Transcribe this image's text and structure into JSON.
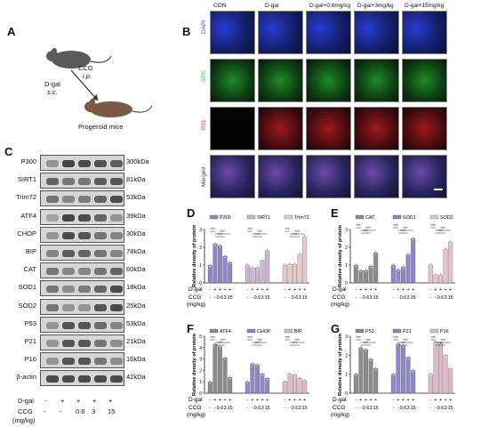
{
  "panel_labels": {
    "a": "A",
    "b": "B",
    "c": "C",
    "d": "D",
    "e": "E",
    "f": "F",
    "g": "G"
  },
  "panel_a": {
    "drug": "CCG",
    "drug_route": "i.p.",
    "inducer": "D-gal",
    "inducer_route": "s.c.",
    "result": "Progeroid mice"
  },
  "panel_b": {
    "columns": [
      "CON",
      "D-gal",
      "D-gal+0.6mg/kg",
      "D-gal+3mg/kg",
      "D-gal+15mg/kg"
    ],
    "rows": [
      {
        "label": "DAPI",
        "color": "#2e4bd9"
      },
      {
        "label": "SPC",
        "color": "#2cc23a"
      },
      {
        "label": "P21",
        "color": "#e0222a"
      },
      {
        "label": "Merged",
        "color": "#333333"
      }
    ]
  },
  "panel_c": {
    "blots": [
      {
        "protein": "P300",
        "kda": "300kDa"
      },
      {
        "protein": "SIRT1",
        "kda": "81kDa"
      },
      {
        "protein": "Trim72",
        "kda": "53kDa"
      },
      {
        "protein": "ATF4",
        "kda": "39kDa"
      },
      {
        "protein": "CHOP",
        "kda": "30kDa"
      },
      {
        "protein": "BIP",
        "kda": "78kDa"
      },
      {
        "protein": "CAT",
        "kda": "60kDa"
      },
      {
        "protein": "SOD1",
        "kda": "18kDa"
      },
      {
        "protein": "SOD2",
        "kda": "25kDa"
      },
      {
        "protein": "P53",
        "kda": "53kDa"
      },
      {
        "protein": "P21",
        "kda": "21kDa"
      },
      {
        "protein": "P16",
        "kda": "16kDa"
      },
      {
        "protein": "β-actin",
        "kda": "42kDa"
      }
    ],
    "row1_label": "D-gal",
    "row1_vals": [
      "-",
      "+",
      "+",
      "+",
      "+"
    ],
    "row2_label": "CCG",
    "row2_vals": [
      "-",
      "-",
      "0.6",
      "3",
      "15"
    ],
    "unit": "(mg/kg)"
  },
  "bar_axis_label": "Relative density of protein",
  "xrow1": {
    "label": "D-gal",
    "vals": [
      "-",
      "+",
      "+",
      "+",
      "+"
    ]
  },
  "xrow2": {
    "label": "CCG",
    "vals": [
      "-",
      "-",
      "0.6",
      "3",
      "15"
    ]
  },
  "xunit": "(mg/kg)",
  "chart_data": [
    {
      "panel": "D",
      "type": "bar",
      "ylabel": "Relative density of protein",
      "ylim": [
        0,
        3
      ],
      "yticks": [
        0,
        1,
        2,
        3
      ],
      "categories": [
        "CON",
        "D-gal",
        "D-gal+0.6",
        "D-gal+3",
        "D-gal+15"
      ],
      "series": [
        {
          "name": "P300",
          "color": "#8e86c9",
          "values": [
            1.0,
            2.2,
            2.1,
            1.5,
            1.15
          ]
        },
        {
          "name": "SIRT1",
          "color": "#cdb3d4",
          "values": [
            1.0,
            0.85,
            0.85,
            1.25,
            1.8
          ]
        },
        {
          "name": "Trim72",
          "color": "#e8c9c9",
          "values": [
            1.0,
            1.05,
            1.05,
            1.6,
            2.6
          ]
        }
      ]
    },
    {
      "panel": "E",
      "type": "bar",
      "ylabel": "Relative density of protein",
      "ylim": [
        0,
        3
      ],
      "yticks": [
        0,
        1,
        2,
        3
      ],
      "categories": [
        "CON",
        "D-gal",
        "D-gal+0.6",
        "D-gal+3",
        "D-gal+15"
      ],
      "series": [
        {
          "name": "CAT",
          "color": "#8b8b8b",
          "values": [
            1.0,
            0.7,
            0.7,
            0.95,
            1.7
          ]
        },
        {
          "name": "SOD1",
          "color": "#8e86c9",
          "values": [
            1.0,
            0.75,
            0.9,
            1.6,
            2.5
          ]
        },
        {
          "name": "SOD2",
          "color": "#e8c0d0",
          "values": [
            1.0,
            0.45,
            0.45,
            1.9,
            2.3
          ]
        }
      ]
    },
    {
      "panel": "F",
      "type": "bar",
      "ylabel": "Relative density of protein",
      "ylim": [
        0,
        5
      ],
      "yticks": [
        0,
        1,
        2,
        3,
        4,
        5
      ],
      "categories": [
        "CON",
        "D-gal",
        "D-gal+0.6",
        "D-gal+3",
        "D-gal+15"
      ],
      "series": [
        {
          "name": "ATF4",
          "color": "#8b8b8b",
          "values": [
            1.0,
            4.3,
            4.1,
            3.1,
            1.4
          ]
        },
        {
          "name": "CHOP",
          "color": "#8e86c9",
          "values": [
            1.0,
            2.6,
            2.5,
            1.7,
            1.3
          ]
        },
        {
          "name": "BIP",
          "color": "#e0b8c8",
          "values": [
            1.0,
            1.7,
            1.6,
            1.3,
            1.1
          ]
        }
      ]
    },
    {
      "panel": "G",
      "type": "bar",
      "ylabel": "Relative density of protein",
      "ylim": [
        0,
        3
      ],
      "yticks": [
        0,
        1,
        2,
        3
      ],
      "categories": [
        "CON",
        "D-gal",
        "D-gal+0.6",
        "D-gal+3",
        "D-gal+15"
      ],
      "series": [
        {
          "name": "P53",
          "color": "#8b8b8b",
          "values": [
            1.0,
            2.4,
            2.3,
            1.8,
            1.3
          ]
        },
        {
          "name": "P21",
          "color": "#8e86c9",
          "values": [
            1.0,
            2.6,
            2.5,
            1.9,
            1.2
          ]
        },
        {
          "name": "P16",
          "color": "#e0b8c8",
          "values": [
            1.0,
            2.7,
            2.6,
            2.0,
            1.3
          ]
        }
      ]
    }
  ],
  "colors": {
    "blot_bg": "#d6d6d6",
    "band": "#333333"
  }
}
